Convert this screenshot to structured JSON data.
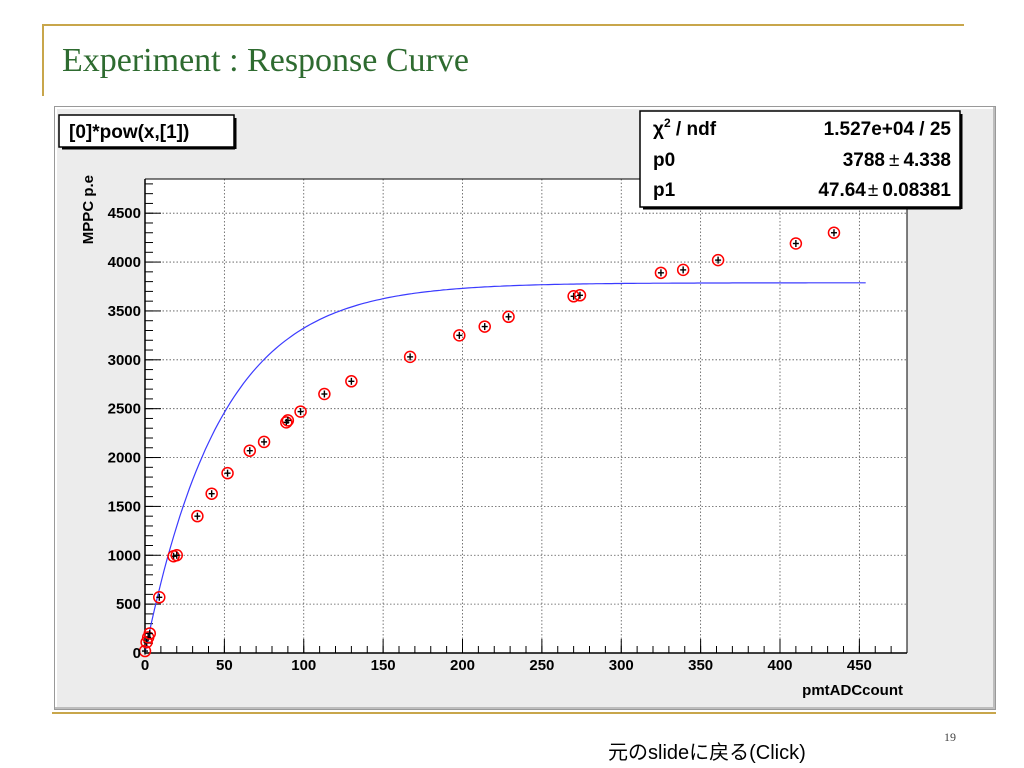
{
  "slide": {
    "title": "Experiment : Response Curve",
    "page_number": "19",
    "back_link": "元のslideに戻る(Click)"
  },
  "chart_data": {
    "type": "scatter",
    "function_label": "[0]*pow(x,[1])",
    "xlabel": "pmtADCcount",
    "ylabel": "MPPC p.e",
    "xlim": [
      0,
      480
    ],
    "ylim": [
      0,
      4850
    ],
    "x_ticks": [
      "0",
      "50",
      "100",
      "150",
      "200",
      "250",
      "300",
      "350",
      "400",
      "450"
    ],
    "y_ticks": [
      "0",
      "500",
      "1000",
      "1500",
      "2000",
      "2500",
      "3000",
      "3500",
      "4000",
      "4500"
    ],
    "grid": true,
    "stats": {
      "chi2_label": "χ",
      "chi2_sup": "2",
      "chi2_rest": " / ndf",
      "chi2_value": "1.527e+04 / 25",
      "p0_label": "p0",
      "p0_value": "3788",
      "p0_error": "4.338",
      "p1_label": "p1",
      "p1_value": "47.64",
      "p1_error": "0.08381",
      "pm": "±"
    },
    "series": [
      {
        "x": [
          0,
          1,
          2,
          3,
          9,
          18,
          20,
          33,
          42,
          52,
          66,
          75,
          89,
          90,
          98,
          113,
          130,
          167,
          198,
          214,
          229,
          270,
          274,
          325,
          339,
          361,
          410,
          434
        ],
        "values": [
          20,
          110,
          160,
          200,
          570,
          990,
          1000,
          1400,
          1630,
          1840,
          2070,
          2160,
          2360,
          2380,
          2470,
          2650,
          2780,
          3030,
          3250,
          3340,
          3440,
          3650,
          3660,
          3890,
          3920,
          4020,
          4190,
          4300
        ]
      }
    ],
    "fit": {
      "p0": 3788,
      "p1": 47.64,
      "x_range": [
        0,
        455
      ],
      "color": "#3b3bff"
    },
    "marker_color": "#ff0000"
  }
}
